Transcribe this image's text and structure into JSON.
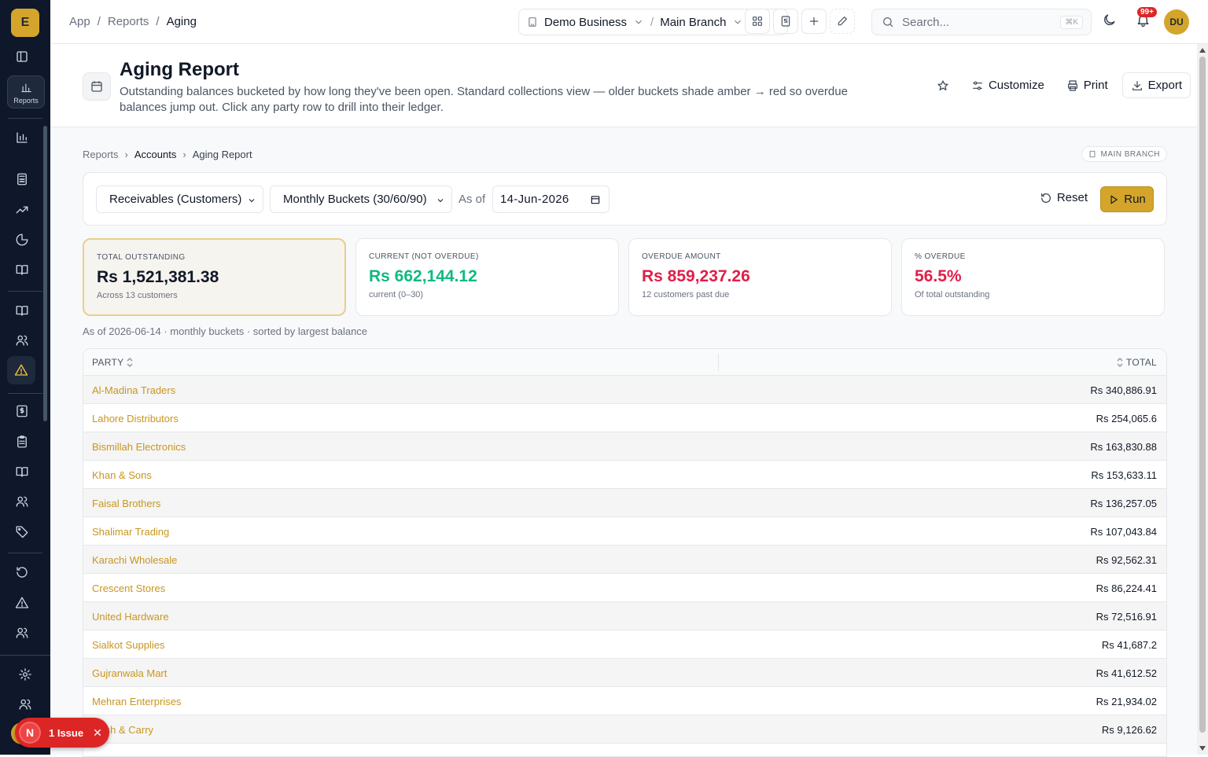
{
  "app": {
    "logo_letter": "E",
    "accent": "#d4a52a"
  },
  "sidebar": {
    "active_label": "Reports"
  },
  "topbar": {
    "breadcrumbs": [
      "App",
      "/",
      "Reports",
      "/",
      "Aging"
    ],
    "business": "Demo Business",
    "separator": "/",
    "branch": "Main Branch",
    "search_placeholder": "Search...",
    "search_shortcut": "⌘K",
    "notif_count": "99+",
    "avatar_initials": "DU"
  },
  "header": {
    "title": "Aging Report",
    "description": "Outstanding balances bucketed by how long they've been open. Standard collections view — older buckets shade amber → red so overdue balances jump out. Click any party row to drill into their ledger.",
    "customize_label": "Customize",
    "print_label": "Print",
    "export_label": "Export"
  },
  "subcrumbs": [
    "Reports",
    "Accounts",
    "Aging Report"
  ],
  "branch_tag": "MAIN BRANCH",
  "filters": {
    "type": "Receivables (Customers)",
    "buckets": "Monthly Buckets (30/60/90)",
    "as_of_label": "As of",
    "date": "14-Jun-2026",
    "reset_label": "Reset",
    "run_label": "Run"
  },
  "cards": [
    {
      "label": "TOTAL OUTSTANDING",
      "value": "Rs 1,521,381.38",
      "sub": "Across 13 customers"
    },
    {
      "label": "CURRENT (NOT OVERDUE)",
      "value": "Rs 662,144.12",
      "sub": "current (0–30)"
    },
    {
      "label": "OVERDUE AMOUNT",
      "value": "Rs 859,237.26",
      "sub": "12 customers past due"
    },
    {
      "label": "% OVERDUE",
      "value": "56.5%",
      "sub": "Of total outstanding"
    }
  ],
  "meta": "As of 2026-06-14 · monthly buckets · sorted by largest balance",
  "table": {
    "headers": {
      "party": "PARTY",
      "total": "TOTAL"
    },
    "rows": [
      {
        "party": "Al-Madina Traders",
        "total": "Rs 340,886.91"
      },
      {
        "party": "Lahore Distributors",
        "total": "Rs 254,065.6"
      },
      {
        "party": "Bismillah Electronics",
        "total": "Rs 163,830.88"
      },
      {
        "party": "Khan & Sons",
        "total": "Rs 153,633.11"
      },
      {
        "party": "Faisal Brothers",
        "total": "Rs 136,257.05"
      },
      {
        "party": "Shalimar Trading",
        "total": "Rs 107,043.84"
      },
      {
        "party": "Karachi Wholesale",
        "total": "Rs 92,562.31"
      },
      {
        "party": "Crescent Stores",
        "total": "Rs 86,224.41"
      },
      {
        "party": "United Hardware",
        "total": "Rs 72,516.91"
      },
      {
        "party": "Sialkot Supplies",
        "total": "Rs 41,687.2"
      },
      {
        "party": "Gujranwala Mart",
        "total": "Rs 41,612.52"
      },
      {
        "party": "Mehran Enterprises",
        "total": "Rs 21,934.02"
      },
      {
        "party": "Cash & Carry",
        "total": "Rs 9,126.62"
      }
    ]
  },
  "issue_badge": {
    "letter": "N",
    "label": "1 Issue",
    "close": "✕"
  }
}
